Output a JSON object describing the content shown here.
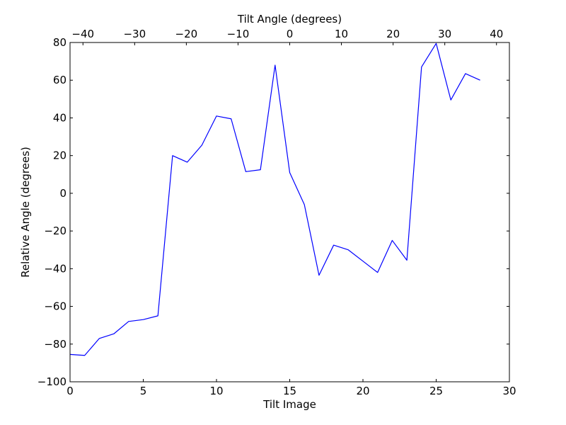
{
  "chart_data": {
    "type": "line",
    "xlabel": "Tilt Image",
    "ylabel": "Relative Angle (degrees)",
    "top_xlabel": "Tilt Angle (degrees)",
    "xlim": [
      0,
      30
    ],
    "ylim": [
      -100,
      80
    ],
    "top_xlim": [
      -42.5,
      42.5
    ],
    "grid": false,
    "x_ticks": [
      0,
      5,
      10,
      15,
      20,
      25,
      30
    ],
    "x_tick_labels": [
      "0",
      "5",
      "10",
      "15",
      "20",
      "25",
      "30"
    ],
    "y_ticks": [
      -100,
      -80,
      -60,
      -40,
      -20,
      0,
      20,
      40,
      60,
      80
    ],
    "y_tick_labels": [
      "−100",
      "−80",
      "−60",
      "−40",
      "−20",
      "0",
      "20",
      "40",
      "60",
      "80"
    ],
    "top_x_ticks": [
      -40,
      -30,
      -20,
      -10,
      0,
      10,
      20,
      30,
      40
    ],
    "top_x_tick_labels": [
      "−40",
      "−30",
      "−20",
      "−10",
      "0",
      "10",
      "20",
      "30",
      "40"
    ],
    "series": [
      {
        "color": "#0000ff",
        "x": [
          0,
          1,
          2,
          3,
          4,
          5,
          6,
          7,
          8,
          9,
          10,
          11,
          12,
          13,
          14,
          15,
          16,
          17,
          18,
          19,
          20,
          21,
          22,
          23,
          24,
          25,
          26,
          27,
          28
        ],
        "y": [
          -85.5,
          -86,
          -77,
          -74.5,
          -68,
          -67,
          -65,
          20,
          16.5,
          25.5,
          41,
          39.5,
          11.5,
          12.5,
          68,
          11,
          -6,
          -43.5,
          -27.5,
          -30,
          -36,
          -42,
          -25,
          -35.5,
          67,
          79.5,
          49.5,
          63.5,
          60
        ]
      }
    ]
  }
}
